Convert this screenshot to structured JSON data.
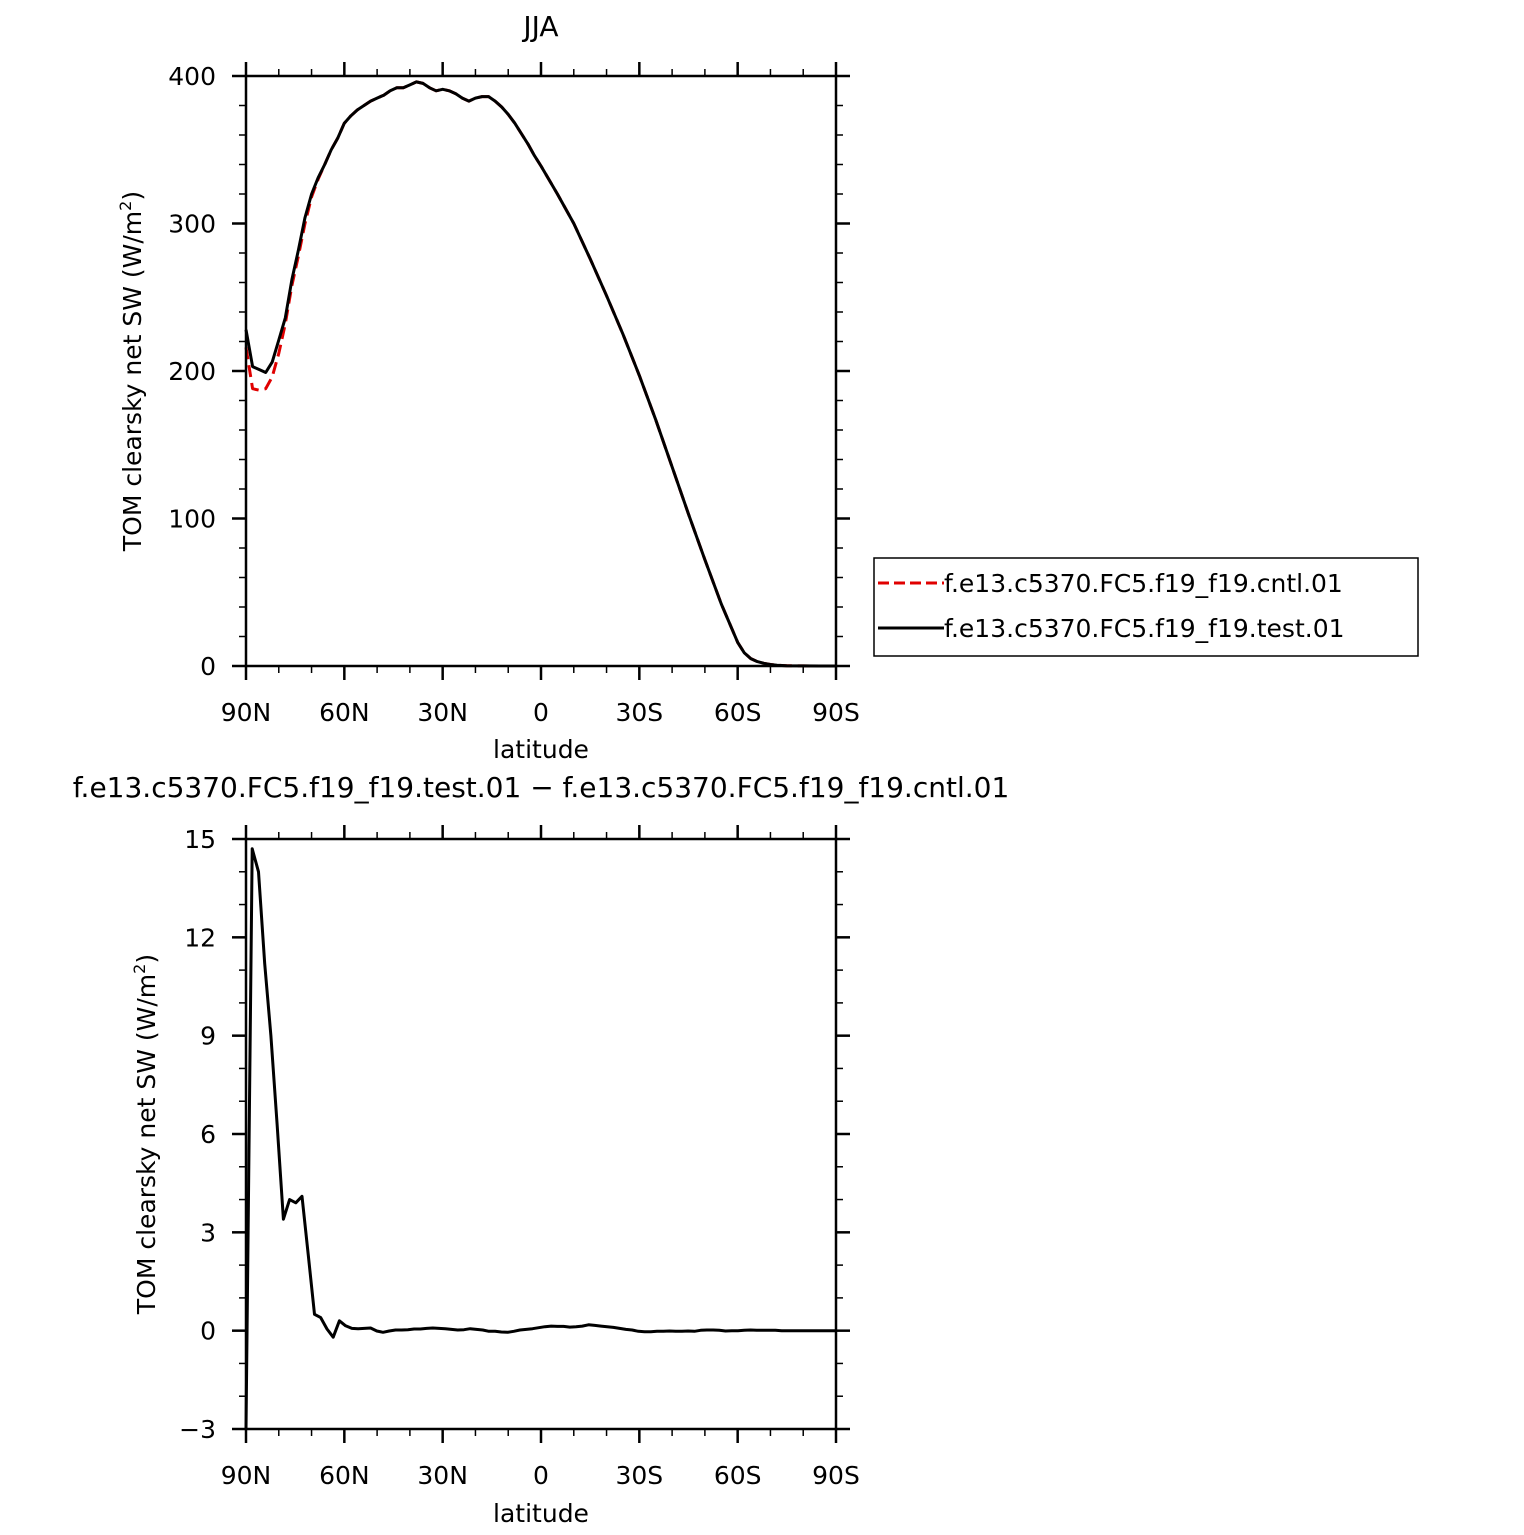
{
  "chart_data": [
    {
      "type": "line",
      "title": "JJA",
      "xlabel": "latitude",
      "ylabel": "TOM clearsky net SW (W/m²)",
      "ylabel_main": "TOM clearsky net SW (W/m",
      "ylabel_sup": "2",
      "ylabel_close": ")",
      "xlim": [
        90,
        -90
      ],
      "ylim": [
        0,
        400
      ],
      "x_ticks": [
        90,
        60,
        30,
        0,
        -30,
        -60,
        -90
      ],
      "x_tick_labels": [
        "90N",
        "60N",
        "30N",
        "0",
        "30S",
        "60S",
        "90S"
      ],
      "y_ticks": [
        0,
        100,
        200,
        300,
        400
      ],
      "y_tick_labels": [
        "0",
        "100",
        "200",
        "300",
        "400"
      ],
      "legend": "right",
      "series": [
        {
          "name": "f.e13.c5370.FC5.f19_f19.cntl.01",
          "color": "#e00000",
          "dash": true,
          "x": [
            90,
            88,
            86,
            84,
            82,
            80,
            78,
            76,
            74,
            72,
            70,
            68,
            66,
            64,
            62,
            60,
            58,
            56,
            54,
            52,
            50,
            48,
            46,
            44,
            42,
            40,
            38,
            36,
            34,
            32,
            30,
            28,
            26,
            24,
            22,
            20,
            18,
            16,
            14,
            12,
            10,
            8,
            6,
            4,
            2,
            0,
            -5,
            -10,
            -15,
            -20,
            -25,
            -30,
            -35,
            -40,
            -45,
            -50,
            -55,
            -60,
            -62,
            -64,
            -66,
            -68,
            -70,
            -72,
            -75,
            -80,
            -85,
            -90
          ],
          "y": [
            216,
            188,
            187,
            188,
            196,
            212,
            232,
            258,
            278,
            300,
            318,
            330,
            340,
            350,
            358,
            368,
            373,
            377,
            380,
            383,
            385,
            387,
            390,
            392,
            392,
            394,
            396,
            395,
            392,
            390,
            391,
            390,
            388,
            385,
            383,
            385,
            386,
            386,
            383,
            379,
            374,
            368,
            361,
            354,
            346,
            339,
            320,
            300,
            276,
            251,
            225,
            197,
            167,
            135,
            103,
            72,
            42,
            16,
            9,
            5,
            3,
            1.8,
            1,
            0.5,
            0.2,
            0.05,
            0.01,
            0
          ]
        },
        {
          "name": "f.e13.c5370.FC5.f19_f19.test.01",
          "color": "#000000",
          "dash": false,
          "x": [
            90,
            88,
            86,
            84,
            82,
            80,
            78,
            76,
            74,
            72,
            70,
            68,
            66,
            64,
            62,
            60,
            58,
            56,
            54,
            52,
            50,
            48,
            46,
            44,
            42,
            40,
            38,
            36,
            34,
            32,
            30,
            28,
            26,
            24,
            22,
            20,
            18,
            16,
            14,
            12,
            10,
            8,
            6,
            4,
            2,
            0,
            -5,
            -10,
            -15,
            -20,
            -25,
            -30,
            -35,
            -40,
            -45,
            -50,
            -55,
            -60,
            -62,
            -64,
            -66,
            -68,
            -70,
            -72,
            -75,
            -80,
            -85,
            -90
          ],
          "y": [
            228,
            203,
            201,
            199,
            206,
            221,
            236,
            262,
            282,
            304,
            320,
            331,
            340,
            350,
            358,
            368,
            373,
            377,
            380,
            383,
            385,
            387,
            390,
            392,
            392,
            394,
            396,
            395,
            392,
            390,
            391,
            390,
            388,
            385,
            383,
            385,
            386,
            386,
            383,
            379,
            374,
            368,
            361,
            354,
            346,
            339,
            320,
            300,
            276,
            251,
            225,
            197,
            167,
            135,
            103,
            72,
            42,
            16,
            9,
            5,
            3,
            1.8,
            1,
            0.5,
            0.2,
            0.05,
            0.01,
            0
          ]
        }
      ]
    },
    {
      "type": "line",
      "title": "f.e13.c5370.FC5.f19_f19.test.01 − f.e13.c5370.FC5.f19_f19.cntl.01",
      "xlabel": "latitude",
      "ylabel": "TOM clearsky net SW (W/m²)",
      "ylabel_main": "TOM clearsky net SW (W/m",
      "ylabel_sup": "2",
      "ylabel_close": ")",
      "xlim": [
        90,
        -90
      ],
      "ylim": [
        -3,
        15
      ],
      "x_ticks": [
        90,
        60,
        30,
        0,
        -30,
        -60,
        -90
      ],
      "x_tick_labels": [
        "90N",
        "60N",
        "30N",
        "0",
        "30S",
        "60S",
        "90S"
      ],
      "y_ticks": [
        -3,
        0,
        3,
        6,
        9,
        12,
        15
      ],
      "y_tick_labels": [
        "−3",
        "0",
        "3",
        "6",
        "9",
        "12",
        "15"
      ],
      "series": [
        {
          "color": "#000000",
          "dash": false,
          "x": [
            90,
            88.1,
            86.2,
            84.3,
            82.4,
            80.5,
            78.6,
            76.7,
            74.8,
            72.9,
            71,
            69.1,
            67.2,
            65.3,
            63.4,
            61.5,
            59.6,
            57.7,
            55.8,
            53.9,
            52,
            50.1,
            48.2,
            46.3,
            44.4,
            42.5,
            40.6,
            38.7,
            36.8,
            34.9,
            33,
            31.1,
            29.2,
            27.3,
            25.4,
            23.5,
            21.6,
            19.7,
            17.8,
            15.9,
            14,
            12.1,
            10.2,
            8.3,
            6.4,
            4.5,
            2.6,
            0.7,
            -1.2,
            -3.1,
            -5,
            -6.9,
            -8.8,
            -10.7,
            -12.6,
            -14.5,
            -16.4,
            -18.3,
            -20.2,
            -22.1,
            -24,
            -25.9,
            -27.8,
            -29.7,
            -31.6,
            -33.5,
            -35.4,
            -37.3,
            -39.2,
            -41.1,
            -43,
            -44.9,
            -46.8,
            -48.7,
            -50.6,
            -52.5,
            -54.4,
            -56.3,
            -58.2,
            -60.1,
            -62,
            -63.9,
            -65.8,
            -67.7,
            -69.6,
            -71.5,
            -73.4,
            -75.3,
            -77.2,
            -79.1,
            -81,
            -82.9,
            -84.8,
            -86.7,
            -88.6,
            -90
          ],
          "y": [
            -3,
            14.7,
            14,
            11.2,
            9,
            6.3,
            3.4,
            4,
            3.9,
            4.1,
            2.3,
            0.5,
            0.4,
            0.05,
            -0.2,
            0.3,
            0.15,
            0.07,
            0.06,
            0.07,
            0.08,
            -0.01,
            -0.05,
            -0.01,
            0.02,
            0.02,
            0.03,
            0.05,
            0.05,
            0.07,
            0.08,
            0.07,
            0.06,
            0.04,
            0.02,
            0.03,
            0.06,
            0.04,
            0.02,
            -0.02,
            -0.02,
            -0.04,
            -0.05,
            -0.02,
            0.02,
            0.04,
            0.06,
            0.09,
            0.12,
            0.14,
            0.13,
            0.13,
            0.11,
            0.12,
            0.14,
            0.18,
            0.16,
            0.14,
            0.12,
            0.1,
            0.07,
            0.04,
            0.02,
            -0.02,
            -0.03,
            -0.03,
            -0.02,
            -0.02,
            -0.01,
            -0.02,
            -0.02,
            -0.01,
            -0.02,
            0.01,
            0.02,
            0.02,
            0.01,
            -0.01,
            0.0,
            0.0,
            0.01,
            0.02,
            0.01,
            0.01,
            0.01,
            0.01,
            0.0,
            0.0,
            0.0,
            0.0,
            0.0,
            0.0,
            0.0,
            0.0,
            0.0,
            0.0
          ]
        }
      ]
    }
  ]
}
